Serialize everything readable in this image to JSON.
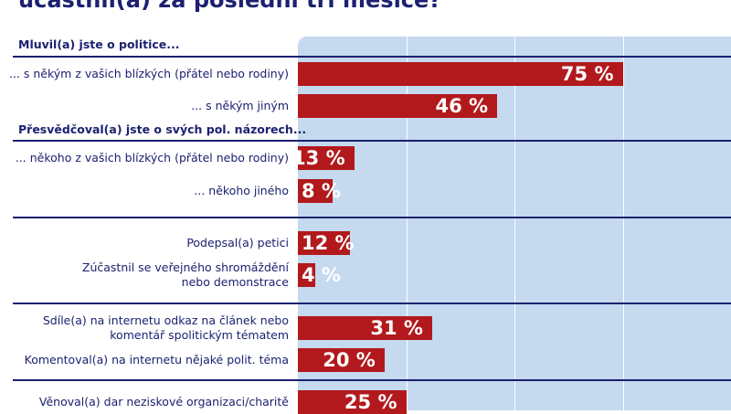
{
  "title": "účastnil(a) za poslední tři měsíce?",
  "colors": {
    "bar": "#b2191c",
    "plot_bg": "#c5d9ef",
    "text": "#1c2170"
  },
  "chart_data": {
    "type": "bar",
    "orientation": "horizontal",
    "xlim": [
      0,
      100
    ],
    "grid": true,
    "groups": [
      {
        "header": "Mluvil(a) jste o politice...",
        "items": [
          {
            "label": "... s někým z vašich blízkých (přátel nebo rodiny)",
            "value": 75,
            "value_label": "75 %"
          },
          {
            "label": "... s někým jiným",
            "value": 46,
            "value_label": "46 %"
          }
        ]
      },
      {
        "header": "Přesvědčoval(a) jste o svých pol. názorech...",
        "items": [
          {
            "label": "... někoho z vašich blízkých (přátel nebo rodiny)",
            "value": 13,
            "value_label": "13 %"
          },
          {
            "label": "... někoho jiného",
            "value": 8,
            "value_label": "8 %"
          }
        ]
      },
      {
        "header": "",
        "items": [
          {
            "label": "Podepsal(a) petici",
            "value": 12,
            "value_label": "12 %"
          },
          {
            "label": "Zúčastnil se veřejného shromáždění\nnebo demonstrace",
            "value": 4,
            "value_label": "4 %"
          }
        ]
      },
      {
        "header": "",
        "items": [
          {
            "label": "Sdíle(a) na internetu odkaz na článek nebo\nkomentář spolitickým tématem",
            "value": 31,
            "value_label": "31 %"
          },
          {
            "label": "Komentoval(a) na internetu nějaké polit. téma",
            "value": 20,
            "value_label": "20 %"
          }
        ]
      },
      {
        "header": "",
        "items": [
          {
            "label": "Věnoval(a) dar neziskové organizaci/charitě",
            "value": 25,
            "value_label": "25 %"
          }
        ]
      }
    ]
  }
}
